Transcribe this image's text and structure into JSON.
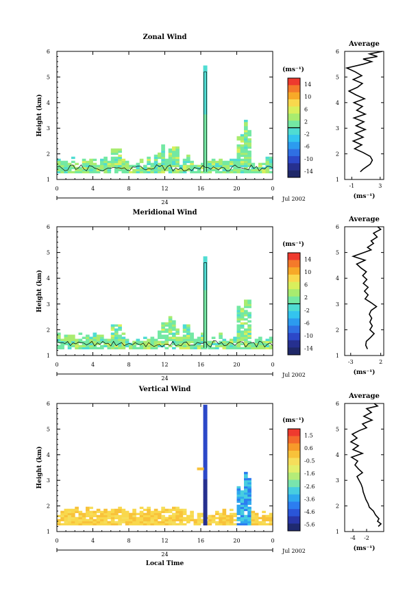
{
  "chart_data": [
    {
      "type": "heatmap",
      "title": "Zonal Wind",
      "ylabel": "Height (km)",
      "ylim": [
        1,
        6
      ],
      "yticks": [
        "1",
        "2",
        "3",
        "4",
        "5",
        "6"
      ],
      "xticks": [
        "0",
        "4",
        "8",
        "12",
        "16",
        "20",
        "0"
      ],
      "date_day": "24",
      "date_month": "Jul 2002",
      "colorbar": {
        "unit": "(ms⁻¹)",
        "ticks": [
          "14",
          "10",
          "6",
          "2",
          "-2",
          "-6",
          "-10",
          "-14"
        ]
      },
      "profile": {
        "title": "Average",
        "xticks": [
          "-1",
          "3"
        ],
        "xlim": [
          -2,
          3.5
        ],
        "unit": "(ms⁻¹)",
        "points": [
          [
            0.2,
            1.3
          ],
          [
            0.6,
            1.4
          ],
          [
            1.1,
            1.5
          ],
          [
            1.6,
            1.6
          ],
          [
            1.9,
            1.75
          ],
          [
            1.6,
            1.9
          ],
          [
            0.6,
            2.05
          ],
          [
            -0.6,
            2.2
          ],
          [
            0.4,
            2.35
          ],
          [
            -0.8,
            2.5
          ],
          [
            0.6,
            2.65
          ],
          [
            -0.5,
            2.8
          ],
          [
            0.9,
            2.95
          ],
          [
            -0.4,
            3.1
          ],
          [
            0.7,
            3.25
          ],
          [
            -0.7,
            3.4
          ],
          [
            0.9,
            3.55
          ],
          [
            -0.3,
            3.7
          ],
          [
            0.5,
            3.85
          ],
          [
            -0.7,
            4.0
          ],
          [
            0.8,
            4.15
          ],
          [
            -0.4,
            4.3
          ],
          [
            -1.4,
            4.45
          ],
          [
            -0.2,
            4.6
          ],
          [
            0.5,
            4.75
          ],
          [
            -0.8,
            4.9
          ],
          [
            0.4,
            5.05
          ],
          [
            -0.5,
            5.2
          ],
          [
            -1.7,
            5.35
          ],
          [
            0.6,
            5.5
          ],
          [
            1.8,
            5.6
          ],
          [
            0.6,
            5.7
          ],
          [
            2.6,
            5.8
          ],
          [
            1.5,
            5.9
          ],
          [
            3.3,
            6.0
          ]
        ]
      }
    },
    {
      "type": "heatmap",
      "title": "Meridional Wind",
      "ylabel": "Height (km)",
      "ylim": [
        1,
        6
      ],
      "yticks": [
        "1",
        "2",
        "3",
        "4",
        "5",
        "6"
      ],
      "xticks": [
        "0",
        "4",
        "8",
        "12",
        "16",
        "20",
        "0"
      ],
      "date_day": "24",
      "date_month": "Jul 2002",
      "colorbar": {
        "unit": "(ms⁻¹)",
        "ticks": [
          "14",
          "10",
          "6",
          "2",
          "-2",
          "-6",
          "-10",
          "-14"
        ]
      },
      "profile": {
        "title": "Average",
        "xticks": [
          "-3",
          "2"
        ],
        "xlim": [
          -4,
          2.5
        ],
        "unit": "(ms⁻¹)",
        "points": [
          [
            -0.2,
            1.25
          ],
          [
            -0.5,
            1.4
          ],
          [
            -0.4,
            1.55
          ],
          [
            0.3,
            1.7
          ],
          [
            0.9,
            1.85
          ],
          [
            0.2,
            2.0
          ],
          [
            0.6,
            2.15
          ],
          [
            0.2,
            2.3
          ],
          [
            0.5,
            2.45
          ],
          [
            0.1,
            2.6
          ],
          [
            0.4,
            2.75
          ],
          [
            1.3,
            2.9
          ],
          [
            0.4,
            3.05
          ],
          [
            -0.6,
            3.2
          ],
          [
            -0.1,
            3.35
          ],
          [
            -0.7,
            3.5
          ],
          [
            -0.1,
            3.65
          ],
          [
            -0.9,
            3.8
          ],
          [
            -0.3,
            3.95
          ],
          [
            -1.0,
            4.1
          ],
          [
            -0.4,
            4.25
          ],
          [
            -1.3,
            4.4
          ],
          [
            -2.0,
            4.55
          ],
          [
            -0.6,
            4.7
          ],
          [
            -2.6,
            4.85
          ],
          [
            -0.8,
            5.0
          ],
          [
            0.4,
            5.1
          ],
          [
            -0.2,
            5.2
          ],
          [
            0.8,
            5.35
          ],
          [
            0.4,
            5.45
          ],
          [
            1.4,
            5.6
          ],
          [
            0.8,
            5.75
          ],
          [
            2.0,
            5.9
          ],
          [
            1.5,
            6.0
          ]
        ]
      }
    },
    {
      "type": "heatmap",
      "title": "Vertical Wind",
      "ylabel": "Height (km)",
      "xlabel": "Local Time",
      "ylim": [
        1,
        6
      ],
      "yticks": [
        "1",
        "2",
        "3",
        "4",
        "5",
        "6"
      ],
      "xticks": [
        "0",
        "4",
        "8",
        "12",
        "16",
        "20",
        "0"
      ],
      "date_day": "24",
      "date_month": "Jul 2002",
      "colorbar": {
        "unit": "(ms⁻¹)",
        "ticks": [
          "1.5",
          "0.6",
          "-0.5",
          "-1.6",
          "-2.6",
          "-3.6",
          "-4.6",
          "-5.6"
        ]
      },
      "profile": {
        "title": "Average",
        "xticks": [
          "-4",
          "-2"
        ],
        "xlim": [
          -5.2,
          0.5
        ],
        "unit": "(ms⁻¹)",
        "points": [
          [
            -0.3,
            1.2
          ],
          [
            0.1,
            1.3
          ],
          [
            -0.4,
            1.4
          ],
          [
            -0.2,
            1.5
          ],
          [
            -0.7,
            1.65
          ],
          [
            -1.0,
            1.8
          ],
          [
            -1.6,
            1.95
          ],
          [
            -1.8,
            2.1
          ],
          [
            -2.1,
            2.25
          ],
          [
            -2.3,
            2.4
          ],
          [
            -2.5,
            2.55
          ],
          [
            -2.6,
            2.7
          ],
          [
            -2.8,
            2.85
          ],
          [
            -3.1,
            3.0
          ],
          [
            -3.4,
            3.15
          ],
          [
            -2.6,
            3.3
          ],
          [
            -3.2,
            3.45
          ],
          [
            -3.7,
            3.6
          ],
          [
            -3.3,
            3.75
          ],
          [
            -4.2,
            3.9
          ],
          [
            -2.6,
            4.05
          ],
          [
            -4.0,
            4.2
          ],
          [
            -3.2,
            4.35
          ],
          [
            -4.3,
            4.5
          ],
          [
            -3.4,
            4.65
          ],
          [
            -4.1,
            4.8
          ],
          [
            -3.0,
            4.95
          ],
          [
            -2.0,
            5.05
          ],
          [
            -2.6,
            5.2
          ],
          [
            -1.2,
            5.35
          ],
          [
            -2.4,
            5.5
          ],
          [
            -1.3,
            5.65
          ],
          [
            -2.0,
            5.8
          ],
          [
            -0.4,
            5.9
          ],
          [
            -0.9,
            6.0
          ]
        ]
      }
    }
  ]
}
